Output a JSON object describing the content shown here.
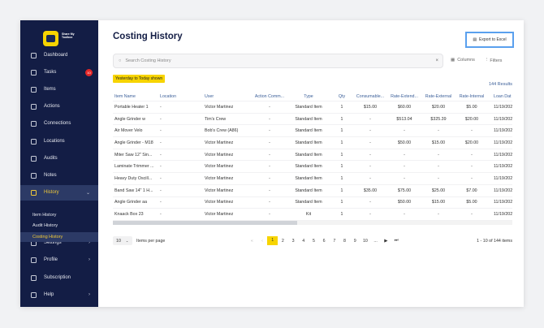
{
  "brand": {
    "logo_text": "Share My Toolbox"
  },
  "sidebar": {
    "items": [
      {
        "label": "Dashboard",
        "icon": "dashboard-icon"
      },
      {
        "label": "Tasks",
        "icon": "tasks-icon",
        "badge": "10"
      },
      {
        "label": "Items",
        "icon": "items-icon"
      },
      {
        "label": "Actions",
        "icon": "actions-icon"
      },
      {
        "label": "Connections",
        "icon": "connections-icon"
      },
      {
        "label": "Locations",
        "icon": "locations-icon"
      },
      {
        "label": "Audits",
        "icon": "audits-icon"
      },
      {
        "label": "Notes",
        "icon": "notes-icon"
      },
      {
        "label": "History",
        "icon": "history-icon"
      },
      {
        "label": "Settings",
        "icon": "settings-icon"
      },
      {
        "label": "Profile",
        "icon": "profile-icon"
      },
      {
        "label": "Subscription",
        "icon": "subscription-icon"
      },
      {
        "label": "Help",
        "icon": "help-icon"
      }
    ],
    "history_sub": [
      "Item History",
      "Audit History",
      "Costing History"
    ]
  },
  "page": {
    "title": "Costing History",
    "export": "Export to Excel",
    "search_placeholder": "Search Costing History",
    "columns": "Columns",
    "filters": "Filters",
    "range_badge": "Yesterday to Today shown",
    "results": "144 Results"
  },
  "table": {
    "headers": [
      "Item Name",
      "Location",
      "User",
      "Action Comm...",
      "Type",
      "Qty",
      "Consumable...",
      "Rate-Extend...",
      "Rate-External",
      "Rate-Internal",
      "Loan Dat"
    ],
    "rows": [
      [
        "Portable Heater 1",
        "-",
        "Victor Martinez",
        "-",
        "Standard Item",
        "1",
        "$15.00",
        "$60.00",
        "$20.00",
        "$5.00",
        "11/19/202"
      ],
      [
        "Angle Grinder w",
        "-",
        "Tim's Crew",
        "-",
        "Standard Item",
        "1",
        "-",
        "$513.04",
        "$325.39",
        "$20.00",
        "11/19/202"
      ],
      [
        "Air Mover Velo",
        "-",
        "Bob's Crew (A86)",
        "-",
        "Standard Item",
        "1",
        "-",
        "-",
        "-",
        "-",
        "11/19/202"
      ],
      [
        "Angle Grinder - M18",
        "-",
        "Victor Martinez",
        "-",
        "Standard Item",
        "1",
        "-",
        "$50.00",
        "$15.00",
        "$20.00",
        "11/19/202"
      ],
      [
        "Miter Saw 12\" Sin...",
        "-",
        "Victor Martinez",
        "-",
        "Standard Item",
        "1",
        "-",
        "-",
        "-",
        "-",
        "11/19/202"
      ],
      [
        "Laminate Trimmer ...",
        "-",
        "Victor Martinez",
        "-",
        "Standard Item",
        "1",
        "-",
        "-",
        "-",
        "-",
        "11/19/202"
      ],
      [
        "Heavy Duty Oscill...",
        "-",
        "Victor Martinez",
        "-",
        "Standard Item",
        "1",
        "-",
        "-",
        "-",
        "-",
        "11/19/202"
      ],
      [
        "Band Saw 14\" 1 H...",
        "-",
        "Victor Martinez",
        "-",
        "Standard Item",
        "1",
        "$35.00",
        "$75.00",
        "$25.00",
        "$7.00",
        "11/19/202"
      ],
      [
        "Angle Grinder aa",
        "-",
        "Victor Martinez",
        "-",
        "Standard Item",
        "1",
        "-",
        "$50.00",
        "$15.00",
        "$5.00",
        "11/19/202"
      ],
      [
        "Knaack Box 23",
        "-",
        "Victor Martinez",
        "-",
        "Kit",
        "1",
        "-",
        "-",
        "-",
        "-",
        "11/19/202"
      ]
    ]
  },
  "pagination": {
    "per_page": "10",
    "per_page_label": "Items per page",
    "pages": [
      "1",
      "2",
      "3",
      "4",
      "5",
      "6",
      "7",
      "8",
      "9",
      "10"
    ],
    "current": "1",
    "ellipsis": "...",
    "summary": "1 - 10 of 144 items"
  }
}
